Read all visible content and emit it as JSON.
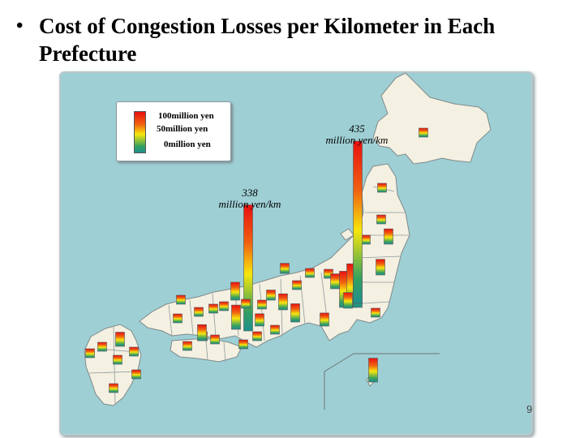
{
  "page": {
    "bullet": "•",
    "title": "Cost of Congestion Losses per Kilometer in Each Prefecture",
    "page_number": "9"
  },
  "chart_data": {
    "type": "bar",
    "title": "Cost of Congestion Losses per Kilometer in Each Prefecture",
    "unit": "million yen/km",
    "legend": [
      {
        "label": "100million yen",
        "value": 100
      },
      {
        "label": "50million yen",
        "value": 50
      },
      {
        "label": "0million yen",
        "value": 0
      }
    ],
    "annotations": [
      {
        "value": "435",
        "unit": "million yen/km"
      },
      {
        "value": "338",
        "unit": "million yen/km"
      }
    ],
    "colors": {
      "high": "#e81010",
      "mid": "#f7e60c",
      "low": "#1f8f90",
      "map_land": "#f4f0e2",
      "sea": "#9ecfd4"
    },
    "values": [
      10,
      18,
      41,
      16,
      18,
      42,
      19,
      97,
      117,
      125,
      17,
      435,
      42,
      40,
      35,
      338,
      65,
      18,
      27,
      21,
      16,
      49,
      18,
      43,
      17,
      27,
      33,
      18,
      15,
      48,
      18,
      14,
      17,
      13,
      15,
      43,
      12,
      14,
      10,
      38,
      14,
      13,
      10,
      13,
      14,
      10,
      64
    ]
  }
}
